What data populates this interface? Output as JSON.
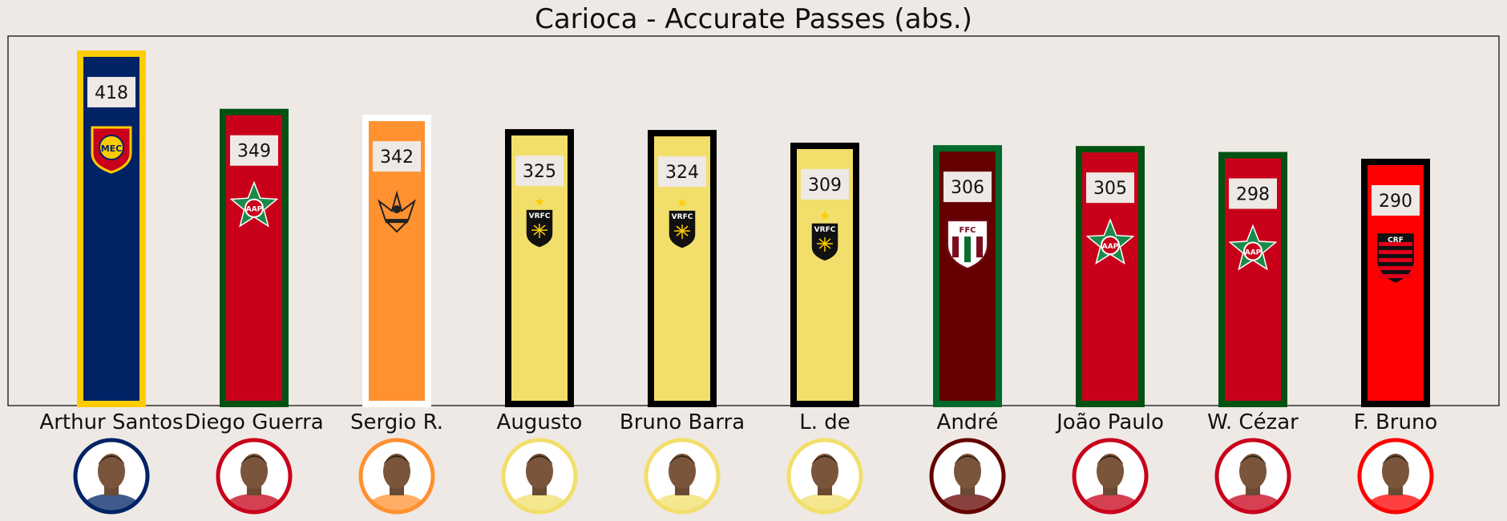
{
  "chart_data": {
    "type": "bar",
    "title": "Carioca - Accurate Passes (abs.)",
    "xlabel": "",
    "ylabel": "",
    "ylim": [
      0,
      435
    ],
    "grid": false,
    "categories": [
      "Arthur Santos",
      "Diego Guerra",
      "Sergio R.",
      "Augusto",
      "Bruno Barra",
      "L. de",
      "André",
      "João Paulo",
      "W. Cézar",
      "F. Bruno"
    ],
    "values": [
      418,
      349,
      342,
      325,
      324,
      309,
      306,
      305,
      298,
      290
    ],
    "bar_fill_colors": [
      "#002366",
      "#c8001a",
      "#ff9130",
      "#f2df6b",
      "#f2df6b",
      "#f2df6b",
      "#640000",
      "#c8001a",
      "#c8001a",
      "#ff0000"
    ],
    "bar_edge_colors": [
      "#ffcc00",
      "#005212",
      "#ffffff",
      "#000000",
      "#000000",
      "#000000",
      "#006a2c",
      "#005212",
      "#005212",
      "#000000"
    ],
    "player_ring_colors": [
      "#002366",
      "#c8001a",
      "#ff9130",
      "#f2df6b",
      "#f2df6b",
      "#f2df6b",
      "#640000",
      "#c8001a",
      "#c8001a",
      "#ff0000"
    ],
    "club_badges": [
      "madureira-badge",
      "portuguesa-badge",
      "nova-iguacu-badge",
      "volta-redonda-badge",
      "volta-redonda-badge",
      "volta-redonda-badge",
      "fluminense-badge",
      "portuguesa-badge",
      "portuguesa-badge",
      "flamengo-badge"
    ],
    "badge_letters": [
      "MEC",
      "AAP",
      "",
      "VRFC",
      "VRFC",
      "VRFC",
      "FFC",
      "AAP",
      "AAP",
      "CRF"
    ]
  }
}
